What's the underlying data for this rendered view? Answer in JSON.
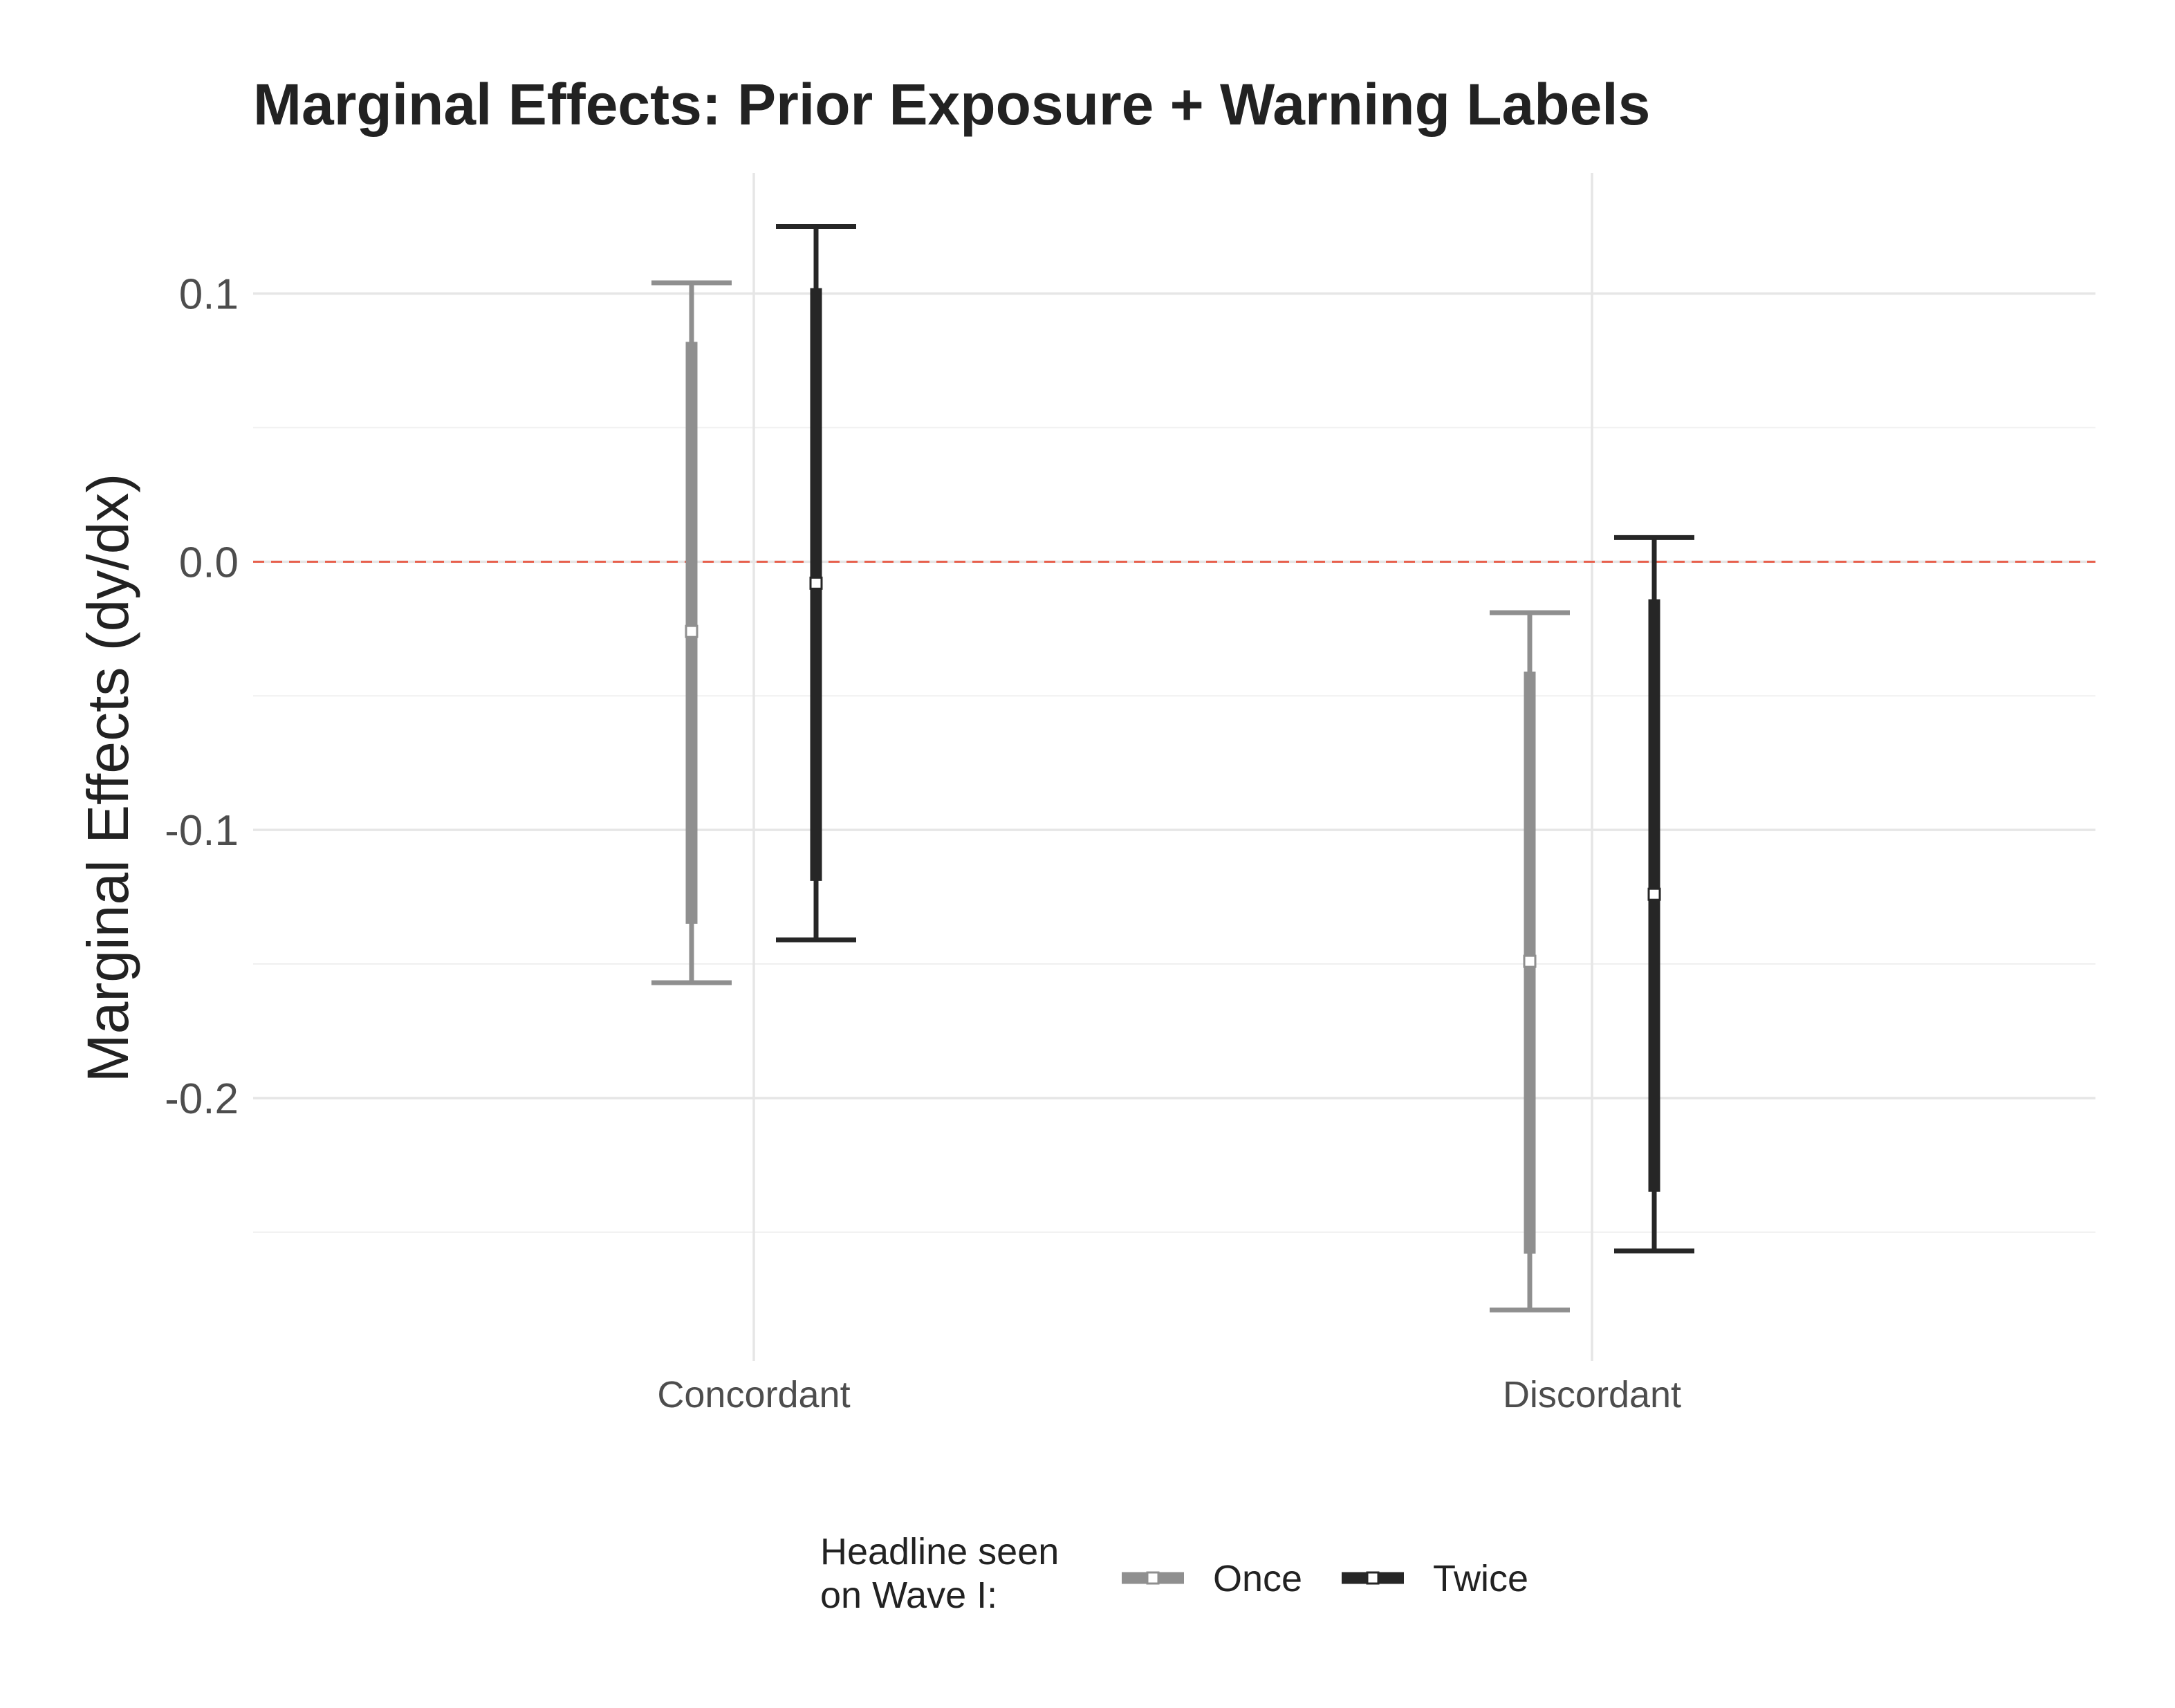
{
  "chart_data": {
    "type": "errorbar",
    "title": "Marginal Effects: Prior Exposure + Warning Labels",
    "xlabel": "",
    "ylabel": "Marginal Effects (dy/dx)",
    "categories": [
      "Concordant",
      "Discordant"
    ],
    "yticks": [
      0.1,
      0.0,
      -0.1,
      -0.2
    ],
    "ytick_labels": [
      "0.1",
      "0.0",
      "-0.1",
      "-0.2"
    ],
    "ylim": [
      -0.298,
      0.145
    ],
    "reference_line": {
      "y": 0.0,
      "style": "dashed",
      "color": "#e8604c"
    },
    "grid": true,
    "legend": {
      "title_line1": "Headline seen",
      "title_line2": " on Wave I:",
      "position": "bottom"
    },
    "series": [
      {
        "name": "Once",
        "color": "#8f8f8f",
        "estimate": [
          -0.026,
          -0.149
        ],
        "ci_inner_low": [
          -0.135,
          -0.258
        ],
        "ci_inner_high": [
          0.082,
          -0.041
        ],
        "ci_outer_low": [
          -0.157,
          -0.279
        ],
        "ci_outer_high": [
          0.104,
          -0.019
        ]
      },
      {
        "name": "Twice",
        "color": "#262626",
        "estimate": [
          -0.008,
          -0.124
        ],
        "ci_inner_low": [
          -0.119,
          -0.235
        ],
        "ci_inner_high": [
          0.102,
          -0.014
        ],
        "ci_outer_low": [
          -0.141,
          -0.257
        ],
        "ci_outer_high": [
          0.125,
          0.009
        ]
      }
    ]
  }
}
